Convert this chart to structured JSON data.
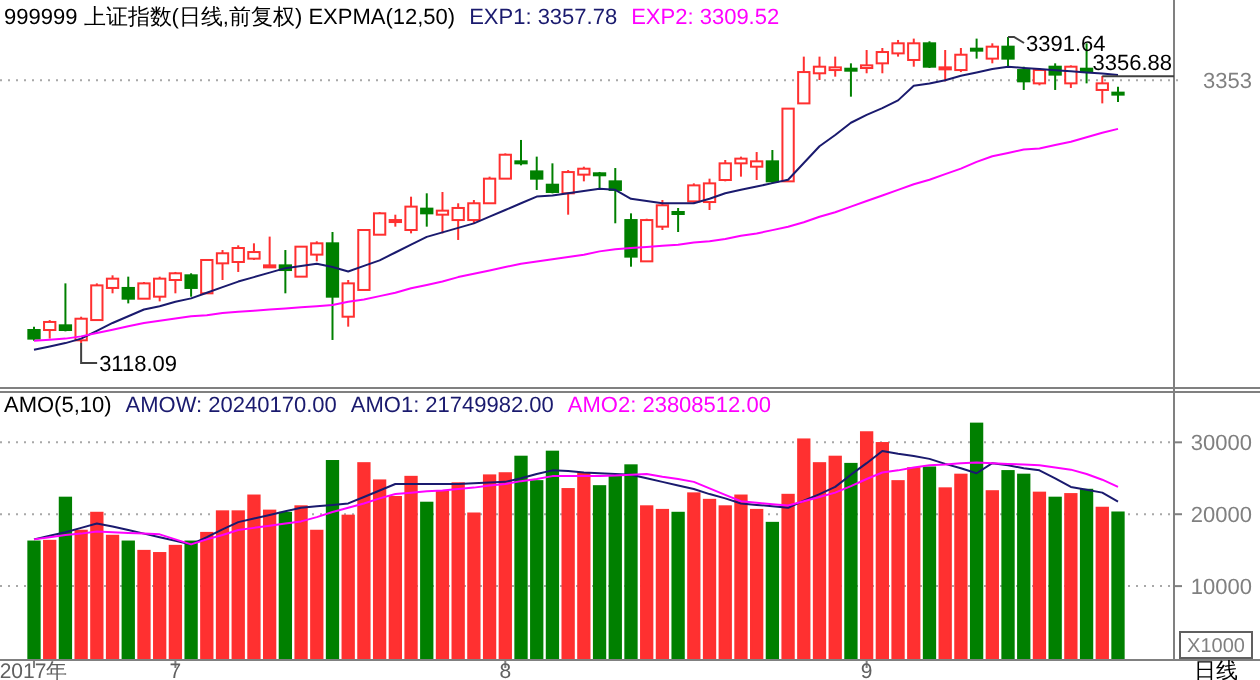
{
  "chart_data": [
    {
      "type": "candlestick",
      "title": "999999 上证指数(日线,前复权) EXPMA(12,50)",
      "legend": "top right",
      "tick_labels": "y",
      "ref_lines": [
        {
          "axis": "y",
          "value": 3353,
          "label": "3353",
          "color": "#a8a8a8",
          "line_style": "dotted"
        }
      ],
      "categories": [
        null,
        null,
        null,
        null,
        null,
        null,
        null,
        null,
        null,
        null,
        null,
        null,
        null,
        null,
        null,
        null,
        null,
        null,
        null,
        null,
        null,
        null,
        null,
        null,
        null,
        null,
        null,
        null,
        null,
        null,
        null,
        null,
        null,
        null,
        null,
        null,
        null,
        null,
        null,
        null,
        null,
        null,
        null,
        null,
        null,
        null,
        null,
        null,
        null,
        null,
        null,
        null,
        null,
        null,
        null,
        null,
        null,
        null,
        null,
        null,
        null,
        null,
        null,
        null,
        null,
        null,
        null,
        null,
        null,
        null
      ],
      "ohlc": [
        [
          3129.7,
          3132.7,
          3120,
          3122
        ],
        [
          3129.7,
          3138.6,
          3122,
          3136.9
        ],
        [
          3133.9,
          3171.4,
          3128.5,
          3129.7
        ],
        [
          3120.5,
          3141.6,
          3118.09,
          3139.8
        ],
        [
          3138.6,
          3171.4,
          3138.6,
          3169.6
        ],
        [
          3167.3,
          3178.6,
          3162.5,
          3175.6
        ],
        [
          3167.3,
          3177.4,
          3153.5,
          3157.7
        ],
        [
          3157.7,
          3172.6,
          3157.7,
          3171.4
        ],
        [
          3159.5,
          3177.4,
          3155.3,
          3175.6
        ],
        [
          3174.4,
          3181.6,
          3162.5,
          3180.4
        ],
        [
          3178.6,
          3180.4,
          3159.5,
          3167.3
        ],
        [
          3162.5,
          3192.3,
          3162.5,
          3192.3
        ],
        [
          3189.3,
          3201.2,
          3174.4,
          3198.3
        ],
        [
          3190.5,
          3205.4,
          3181.6,
          3203
        ],
        [
          3193.5,
          3207.2,
          3192.3,
          3199.4
        ],
        [
          3186.3,
          3213.2,
          3185.1,
          3187.5
        ],
        [
          3187.5,
          3201.2,
          3162.5,
          3183.3
        ],
        [
          3177.4,
          3204.2,
          3177.4,
          3204.2
        ],
        [
          3197.1,
          3209,
          3191.1,
          3207.2
        ],
        [
          3207.2,
          3217.3,
          3120.8,
          3159.5
        ],
        [
          3141.6,
          3174.4,
          3132.7,
          3171.4
        ],
        [
          3165.5,
          3219.1,
          3165.5,
          3219.1
        ],
        [
          3214.9,
          3235.2,
          3214.9,
          3234
        ],
        [
          3226.3,
          3232.8,
          3222.1,
          3228
        ],
        [
          3219.1,
          3248.9,
          3216.1,
          3240
        ],
        [
          3238.2,
          3251.9,
          3222.1,
          3234
        ],
        [
          3232.8,
          3253.1,
          3216.1,
          3236.4
        ],
        [
          3228,
          3243,
          3210.2,
          3238.8
        ],
        [
          3228,
          3245.9,
          3225.1,
          3243
        ],
        [
          3243,
          3266.8,
          3243,
          3265
        ],
        [
          3265,
          3287.6,
          3265,
          3286.4
        ],
        [
          3280.5,
          3299.6,
          3276.9,
          3278.7
        ],
        [
          3271.5,
          3284.7,
          3254.9,
          3265
        ],
        [
          3259.6,
          3278.7,
          3251.9,
          3253.1
        ],
        [
          3251.9,
          3272.7,
          3232.8,
          3270.9
        ],
        [
          3268.6,
          3275.7,
          3262.6,
          3273.9
        ],
        [
          3269.8,
          3271,
          3256.6,
          3268.6
        ],
        [
          3262.6,
          3274.5,
          3225.1,
          3254.9
        ],
        [
          3228,
          3234,
          3186.3,
          3195.3
        ],
        [
          3191.1,
          3229.2,
          3191.1,
          3228
        ],
        [
          3222.1,
          3245.9,
          3219.1,
          3241.2
        ],
        [
          3235.2,
          3238.8,
          3217.3,
          3233.4
        ],
        [
          3244.7,
          3260.8,
          3243,
          3259
        ],
        [
          3244.1,
          3265,
          3237,
          3260.8
        ],
        [
          3263.8,
          3281.7,
          3262.6,
          3278.7
        ],
        [
          3278.7,
          3284.7,
          3266.8,
          3282.9
        ],
        [
          3275.7,
          3288.8,
          3263.8,
          3280.5
        ],
        [
          3280.5,
          3290.6,
          3260.8,
          3262.6
        ],
        [
          3262.6,
          3327.6,
          3262.6,
          3327.6
        ],
        [
          3332.3,
          3374.1,
          3332.3,
          3360.3
        ],
        [
          3359.2,
          3374.1,
          3353.2,
          3365.1
        ],
        [
          3362.1,
          3374.1,
          3356.2,
          3364.5
        ],
        [
          3363.3,
          3368.1,
          3338.3,
          3362.1
        ],
        [
          3363.9,
          3380,
          3359.2,
          3366.3
        ],
        [
          3368.1,
          3381.8,
          3359.2,
          3378.2
        ],
        [
          3377,
          3389,
          3374.1,
          3386
        ],
        [
          3371.1,
          3390.2,
          3365.1,
          3386
        ],
        [
          3386,
          3387.8,
          3363.9,
          3365.1
        ],
        [
          3363.3,
          3380,
          3352,
          3364.5
        ],
        [
          3362.1,
          3381.8,
          3360.3,
          3375.8
        ],
        [
          3381.2,
          3390.2,
          3372.3,
          3380
        ],
        [
          3372.3,
          3386,
          3368.1,
          3383
        ],
        [
          3383,
          3391.64,
          3365.1,
          3372.3
        ],
        [
          3362.1,
          3365.1,
          3344.3,
          3352
        ],
        [
          3350.2,
          3363.9,
          3348.4,
          3362.1
        ],
        [
          3365.1,
          3368.1,
          3344.3,
          3358
        ],
        [
          3350.2,
          3366.3,
          3346.1,
          3365.1
        ],
        [
          3363.3,
          3386,
          3350.2,
          3360.3
        ],
        [
          3344.3,
          3356.88,
          3332.3,
          3350.2
        ],
        [
          3341.9,
          3347.2,
          3333.5,
          3340.7
        ]
      ],
      "colors": [
        "#008000",
        "#ff3030",
        "#008000",
        "#ff3030",
        "#ff3030",
        "#ff3030",
        "#008000",
        "#ff3030",
        "#ff3030",
        "#ff3030",
        "#008000",
        "#ff3030",
        "#ff3030",
        "#ff3030",
        "#ff3030",
        "#ff3030",
        "#008000",
        "#ff3030",
        "#ff3030",
        "#008000",
        "#ff3030",
        "#ff3030",
        "#ff3030",
        "#ff3030",
        "#ff3030",
        "#008000",
        "#ff3030",
        "#ff3030",
        "#ff3030",
        "#ff3030",
        "#ff3030",
        "#008000",
        "#008000",
        "#008000",
        "#ff3030",
        "#ff3030",
        "#008000",
        "#008000",
        "#008000",
        "#ff3030",
        "#ff3030",
        "#008000",
        "#ff3030",
        "#ff3030",
        "#ff3030",
        "#ff3030",
        "#ff3030",
        "#008000",
        "#ff3030",
        "#ff3030",
        "#ff3030",
        "#ff3030",
        "#008000",
        "#ff3030",
        "#ff3030",
        "#ff3030",
        "#ff3030",
        "#008000",
        "#ff3030",
        "#ff3030",
        "#008000",
        "#ff3030",
        "#008000",
        "#008000",
        "#ff3030",
        "#008000",
        "#ff3030",
        "#008000",
        "#ff3030",
        "#008000"
      ],
      "series": [
        {
          "name": "EXP1: 3357.78",
          "type": "line",
          "color": "#1a1a6e",
          "values": [
            3112,
            3115,
            3118,
            3122,
            3129,
            3136,
            3142,
            3148,
            3151,
            3155,
            3158,
            3163,
            3168,
            3173,
            3177,
            3181,
            3185,
            3187,
            3189,
            3186,
            3182,
            3187,
            3192,
            3199,
            3206,
            3213,
            3217,
            3221,
            3225,
            3231,
            3237,
            3243,
            3249,
            3250,
            3252,
            3254,
            3256,
            3255,
            3247,
            3245,
            3243,
            3243,
            3243,
            3247,
            3252,
            3255,
            3258,
            3261,
            3264,
            3279,
            3294,
            3304,
            3315,
            3322,
            3328,
            3335,
            3348,
            3350,
            3353,
            3357,
            3360,
            3363,
            3365,
            3364,
            3363,
            3362,
            3361,
            3360,
            3359,
            3357.78
          ]
        },
        {
          "name": "EXP2: 3309.52",
          "type": "line",
          "color": "#ff00ff",
          "values": [
            3120,
            3121,
            3122,
            3124,
            3127,
            3130,
            3133,
            3136,
            3138,
            3140,
            3142,
            3143,
            3145,
            3146,
            3147,
            3148,
            3149,
            3150,
            3151,
            3152,
            3155,
            3157,
            3160,
            3163,
            3167,
            3170,
            3173,
            3177,
            3180,
            3183,
            3186,
            3189,
            3191,
            3193,
            3195,
            3197,
            3200,
            3202,
            3203,
            3204,
            3205,
            3206,
            3208,
            3209,
            3211,
            3214,
            3216,
            3219,
            3222,
            3226,
            3231,
            3235,
            3240,
            3245,
            3250,
            3255,
            3260,
            3264,
            3269,
            3274,
            3280,
            3285,
            3288,
            3291,
            3292,
            3295,
            3298,
            3302,
            3306,
            3309.52
          ]
        }
      ],
      "annotations": [
        "3391.64",
        "3356.88",
        "3118.09"
      ]
    },
    {
      "type": "bar",
      "title": "AMO(5,10)",
      "subtitle": "AMOW: 20240170.00",
      "legend": "top left",
      "grid": "y",
      "ylabel": "X1000",
      "categories": [
        "2017年",
        null,
        null,
        null,
        null,
        null,
        null,
        null,
        null,
        "7",
        null,
        null,
        null,
        null,
        null,
        null,
        null,
        null,
        null,
        null,
        null,
        null,
        null,
        null,
        null,
        null,
        null,
        null,
        null,
        null,
        "8",
        null,
        null,
        null,
        null,
        null,
        null,
        null,
        null,
        null,
        null,
        null,
        null,
        null,
        null,
        null,
        null,
        null,
        null,
        null,
        null,
        null,
        null,
        "9",
        null,
        null,
        null,
        null,
        null,
        null,
        null,
        null,
        null,
        null,
        null,
        null,
        null,
        null,
        null,
        null
      ],
      "ylim": [
        0,
        37000
      ],
      "yticks": [
        10000,
        20000,
        30000
      ],
      "values": [
        16200,
        16300,
        22300,
        17700,
        20200,
        17000,
        16200,
        14900,
        14600,
        15600,
        16200,
        17400,
        20400,
        20400,
        22600,
        20500,
        20200,
        21100,
        17700,
        27400,
        19800,
        27100,
        24700,
        22400,
        25200,
        21600,
        23200,
        24300,
        20100,
        25400,
        25700,
        28000,
        24600,
        28700,
        23500,
        25700,
        23900,
        25200,
        26800,
        21100,
        20600,
        20200,
        22900,
        22000,
        21100,
        22600,
        20600,
        18800,
        22700,
        30400,
        27100,
        28000,
        27000,
        31400,
        29900,
        24600,
        26400,
        26500,
        23600,
        25500,
        32600,
        23200,
        26000,
        25500,
        23000,
        22300,
        22800,
        23400,
        20900,
        20240.17
      ],
      "colors": [
        "#008000",
        "#ff3030",
        "#008000",
        "#ff3030",
        "#ff3030",
        "#ff3030",
        "#008000",
        "#ff3030",
        "#ff3030",
        "#ff3030",
        "#008000",
        "#ff3030",
        "#ff3030",
        "#ff3030",
        "#ff3030",
        "#ff3030",
        "#008000",
        "#ff3030",
        "#ff3030",
        "#008000",
        "#ff3030",
        "#ff3030",
        "#ff3030",
        "#ff3030",
        "#ff3030",
        "#008000",
        "#ff3030",
        "#ff3030",
        "#ff3030",
        "#ff3030",
        "#ff3030",
        "#008000",
        "#008000",
        "#008000",
        "#ff3030",
        "#ff3030",
        "#008000",
        "#008000",
        "#008000",
        "#ff3030",
        "#ff3030",
        "#008000",
        "#ff3030",
        "#ff3030",
        "#ff3030",
        "#ff3030",
        "#ff3030",
        "#008000",
        "#ff3030",
        "#ff3030",
        "#ff3030",
        "#ff3030",
        "#008000",
        "#ff3030",
        "#ff3030",
        "#ff3030",
        "#ff3030",
        "#008000",
        "#ff3030",
        "#ff3030",
        "#008000",
        "#ff3030",
        "#008000",
        "#008000",
        "#ff3030",
        "#008000",
        "#ff3030",
        "#008000",
        "#ff3030",
        "#008000"
      ],
      "series": [
        {
          "name": "AMO1: 21749982.00",
          "type": "line",
          "color": "#1a1a6e",
          "values": [
            16500,
            17000,
            17500,
            18100,
            18700,
            18300,
            17800,
            17300,
            16800,
            16300,
            15800,
            16800,
            17900,
            18900,
            19400,
            19900,
            20400,
            20900,
            21100,
            21300,
            21500,
            22400,
            23300,
            24200,
            24200,
            24200,
            24200,
            24200,
            24300,
            24400,
            24500,
            25000,
            25600,
            26100,
            26000,
            25800,
            25700,
            25600,
            25500,
            25000,
            24500,
            24000,
            23500,
            22800,
            22200,
            21500,
            21300,
            21100,
            20900,
            21900,
            22800,
            23800,
            25500,
            27100,
            28800,
            28400,
            28100,
            27700,
            27000,
            26400,
            25700,
            27100,
            26800,
            26400,
            26100,
            25000,
            23800,
            23400,
            23000,
            21749.98
          ]
        },
        {
          "name": "AMO2: 23808512.00",
          "type": "line",
          "color": "#ff00ff",
          "values": [
            16500,
            16800,
            17100,
            17300,
            17600,
            17500,
            17400,
            17300,
            17200,
            16500,
            15800,
            16500,
            17100,
            17800,
            18100,
            18400,
            18700,
            19000,
            19600,
            20300,
            20900,
            21500,
            22200,
            22800,
            23000,
            23200,
            23300,
            23500,
            23700,
            24000,
            24200,
            24600,
            24900,
            25300,
            25300,
            25300,
            25300,
            25400,
            25500,
            25600,
            25200,
            24900,
            24500,
            23600,
            22700,
            21800,
            21600,
            21400,
            21200,
            21800,
            22400,
            23000,
            23900,
            24900,
            25800,
            26100,
            26500,
            26800,
            26900,
            27100,
            27200,
            27100,
            27000,
            26900,
            26800,
            26500,
            26200,
            25600,
            24800,
            23808.51
          ]
        }
      ],
      "annotations": [
        "日线"
      ]
    }
  ]
}
